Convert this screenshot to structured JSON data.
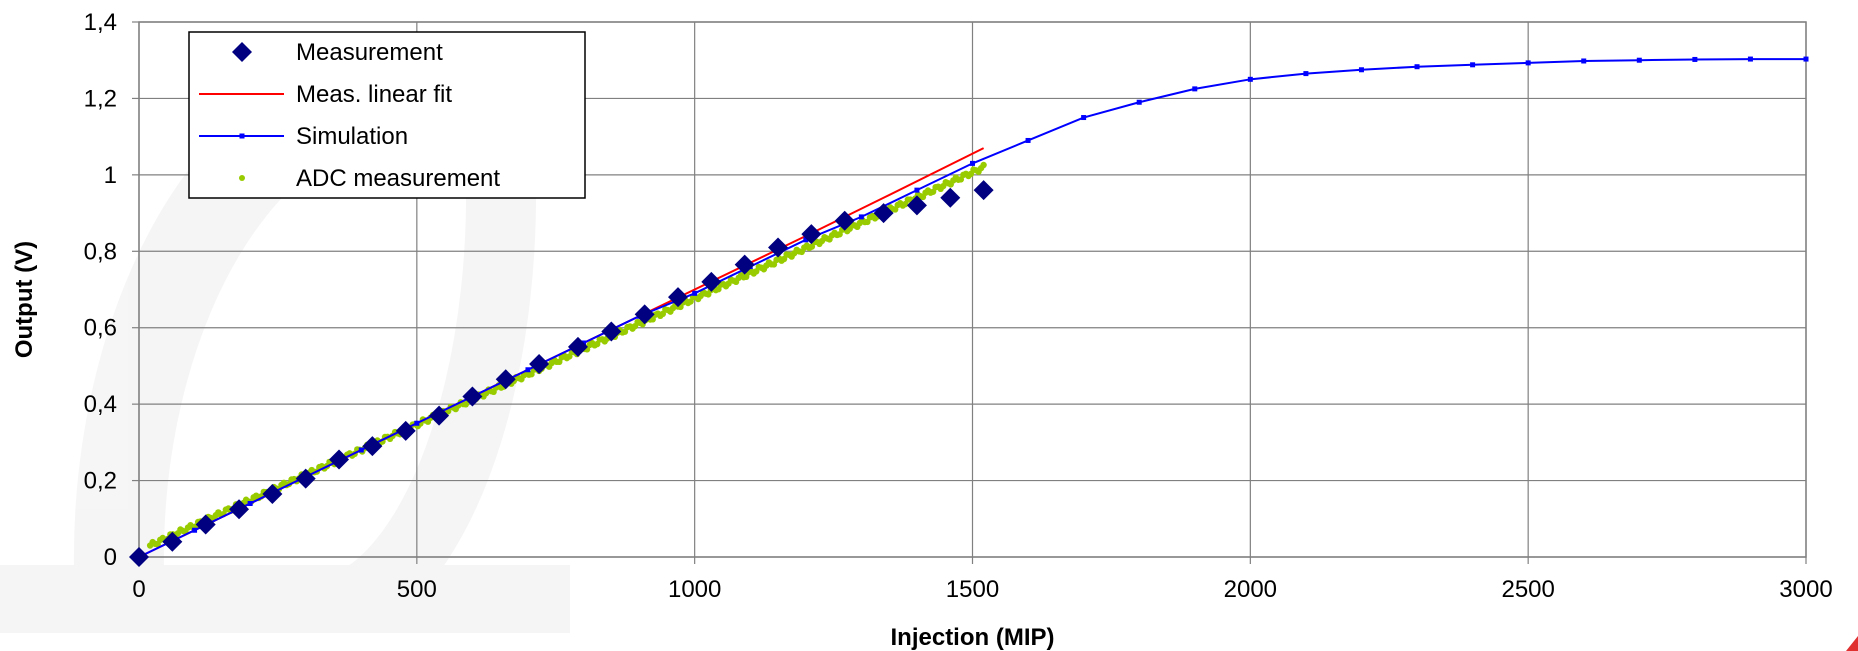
{
  "chart_data": {
    "type": "scatter",
    "title": "",
    "xlabel": "Injection (MIP)",
    "ylabel": "Output (V)",
    "xlim": [
      0,
      3000
    ],
    "ylim": [
      0,
      1.4
    ],
    "x_ticks": [
      "0",
      "500",
      "1000",
      "1500",
      "2000",
      "2500",
      "3000"
    ],
    "y_ticks": [
      "0",
      "0,2",
      "0,4",
      "0,6",
      "0,8",
      "1",
      "1,2",
      "1,4"
    ],
    "grid": true,
    "legend_position": "top-left",
    "series": [
      {
        "name": "Measurement",
        "kind": "marker-diamond",
        "color": "#000080",
        "x": [
          0,
          60,
          120,
          180,
          240,
          300,
          360,
          420,
          480,
          540,
          600,
          660,
          720,
          790,
          850,
          910,
          970,
          1030,
          1090,
          1150,
          1210,
          1270,
          1340,
          1400,
          1460,
          1520
        ],
        "y": [
          0,
          0.04,
          0.085,
          0.125,
          0.165,
          0.205,
          0.255,
          0.29,
          0.33,
          0.37,
          0.42,
          0.465,
          0.505,
          0.55,
          0.59,
          0.635,
          0.68,
          0.72,
          0.765,
          0.81,
          0.845,
          0.88,
          0.9,
          0.92,
          0.94,
          0.96
        ]
      },
      {
        "name": "Meas. linear fit",
        "kind": "line",
        "color": "#ff0000",
        "x": [
          0,
          300,
          600,
          900,
          1200,
          1340,
          1520
        ],
        "y": [
          0,
          0.21,
          0.42,
          0.63,
          0.84,
          0.94,
          1.07
        ]
      },
      {
        "name": "Simulation",
        "kind": "line-marker",
        "color": "#0000ff",
        "x": [
          0,
          100,
          200,
          300,
          400,
          500,
          600,
          700,
          800,
          900,
          1000,
          1100,
          1200,
          1300,
          1400,
          1500,
          1600,
          1700,
          1800,
          1900,
          2000,
          2100,
          2200,
          2300,
          2400,
          2500,
          2600,
          2700,
          2800,
          2900,
          3000
        ],
        "y": [
          0,
          0.07,
          0.14,
          0.21,
          0.28,
          0.35,
          0.42,
          0.49,
          0.56,
          0.63,
          0.69,
          0.76,
          0.83,
          0.89,
          0.96,
          1.03,
          1.09,
          1.15,
          1.19,
          1.225,
          1.25,
          1.265,
          1.275,
          1.283,
          1.288,
          1.293,
          1.298,
          1.3,
          1.302,
          1.303,
          1.303
        ]
      },
      {
        "name": "ADC measurement",
        "kind": "marker-dot-dense",
        "color": "#99cc00",
        "x_range": [
          20,
          1520
        ],
        "y_range": [
          0.03,
          1.02
        ]
      }
    ]
  }
}
